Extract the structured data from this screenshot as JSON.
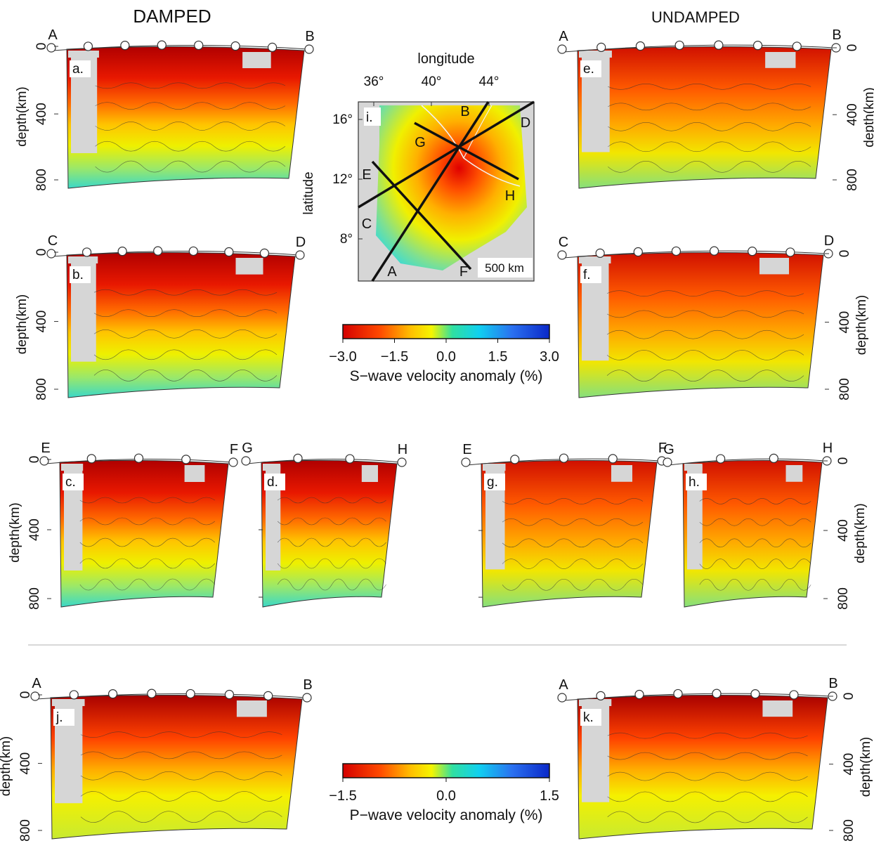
{
  "headings": {
    "left": "DAMPED",
    "right": "UNDAMPED"
  },
  "axis": {
    "depth_label": "depth(km)",
    "ticks": [
      "0",
      "400",
      "800"
    ]
  },
  "sections": [
    {
      "id": "a",
      "label": "a.",
      "ends": [
        "A",
        "B"
      ],
      "side": "left",
      "wave": "S"
    },
    {
      "id": "b",
      "label": "b.",
      "ends": [
        "C",
        "D"
      ],
      "side": "left",
      "wave": "S"
    },
    {
      "id": "c",
      "label": "c.",
      "ends": [
        "E",
        "F"
      ],
      "side": "left",
      "wave": "S"
    },
    {
      "id": "d",
      "label": "d.",
      "ends": [
        "G",
        "H"
      ],
      "side": "none",
      "wave": "S"
    },
    {
      "id": "e",
      "label": "e.",
      "ends": [
        "A",
        "B"
      ],
      "side": "right",
      "wave": "S"
    },
    {
      "id": "f",
      "label": "f.",
      "ends": [
        "C",
        "D"
      ],
      "side": "right",
      "wave": "S"
    },
    {
      "id": "g",
      "label": "g.",
      "ends": [
        "E",
        "F"
      ],
      "side": "none",
      "wave": "S"
    },
    {
      "id": "h",
      "label": "h.",
      "ends": [
        "G",
        "H"
      ],
      "side": "right",
      "wave": "S"
    },
    {
      "id": "j",
      "label": "j.",
      "ends": [
        "A",
        "B"
      ],
      "side": "left",
      "wave": "P"
    },
    {
      "id": "k",
      "label": "k.",
      "ends": [
        "A",
        "B"
      ],
      "side": "right",
      "wave": "P"
    }
  ],
  "map": {
    "label": "i.",
    "x_title": "longitude",
    "y_title": "latitude",
    "lon_ticks": [
      "36°",
      "40°",
      "44°"
    ],
    "lat_ticks": [
      "16°",
      "12°",
      "8°"
    ],
    "scale": "500 km",
    "profile_letters": [
      "A",
      "B",
      "C",
      "D",
      "E",
      "F",
      "G",
      "H"
    ]
  },
  "colorbars": {
    "s_wave": {
      "ticks": [
        "−3.0",
        "−1.5",
        "0.0",
        "1.5",
        "3.0"
      ],
      "label": "S−wave velocity anomaly (%)"
    },
    "p_wave": {
      "ticks": [
        "−1.5",
        "0.0",
        "1.5"
      ],
      "label": "P−wave velocity anomaly (%)"
    }
  }
}
